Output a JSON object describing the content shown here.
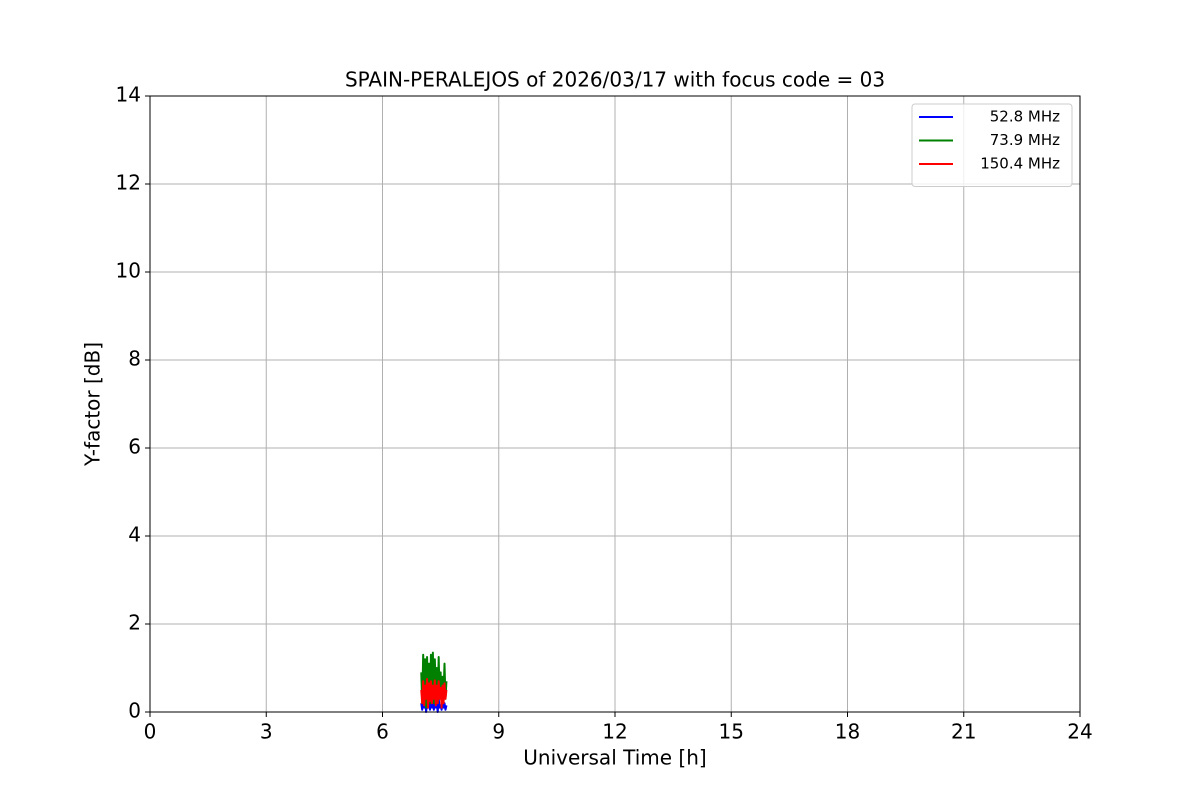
{
  "chart_data": {
    "type": "line",
    "title": "SPAIN-PERALEJOS of 2026/03/17 with focus code = 03",
    "x_label": "Universal Time [h]",
    "y_label": "Y-factor [dB]",
    "x": [
      7.0,
      7.025,
      7.05,
      7.075,
      7.1,
      7.125,
      7.15,
      7.175,
      7.2,
      7.225,
      7.25,
      7.275,
      7.3,
      7.325,
      7.35,
      7.375,
      7.4,
      7.425,
      7.45,
      7.475,
      7.5,
      7.525,
      7.55,
      7.575,
      7.6,
      7.625,
      7.65
    ],
    "series": [
      {
        "name": "52.8 MHz",
        "color": "#0000ff",
        "values": [
          0.2,
          0.05,
          0.25,
          0.1,
          0.3,
          0.0,
          0.2,
          0.1,
          0.25,
          0.05,
          0.3,
          0.1,
          0.2,
          0.05,
          0.25,
          0.1,
          0.2,
          0.0,
          0.3,
          0.1,
          0.15,
          0.05,
          0.25,
          0.1,
          0.2,
          0.05,
          0.15
        ]
      },
      {
        "name": "73.9 MHz",
        "color": "#008000",
        "values": [
          0.9,
          0.2,
          1.3,
          0.3,
          1.2,
          0.1,
          1.25,
          0.4,
          1.1,
          0.2,
          1.3,
          0.3,
          1.35,
          0.2,
          1.2,
          0.5,
          1.0,
          0.2,
          1.25,
          0.3,
          0.9,
          0.2,
          0.8,
          0.4,
          1.1,
          0.3,
          0.7
        ]
      },
      {
        "name": "150.4 MHz",
        "color": "#ff0000",
        "values": [
          0.5,
          0.2,
          0.7,
          0.15,
          0.6,
          0.3,
          0.75,
          0.1,
          0.65,
          0.25,
          0.7,
          0.2,
          0.6,
          0.3,
          0.72,
          0.15,
          0.6,
          0.2,
          0.7,
          0.3,
          0.55,
          0.1,
          0.6,
          0.2,
          0.65,
          0.3,
          0.5
        ]
      }
    ],
    "xlim": [
      0,
      24
    ],
    "xticks": [
      0,
      3,
      6,
      9,
      12,
      15,
      18,
      21,
      24
    ],
    "ylim": [
      0,
      14
    ],
    "yticks": [
      0,
      2,
      4,
      6,
      8,
      10,
      12,
      14
    ],
    "grid": true,
    "legend": "upper right"
  }
}
